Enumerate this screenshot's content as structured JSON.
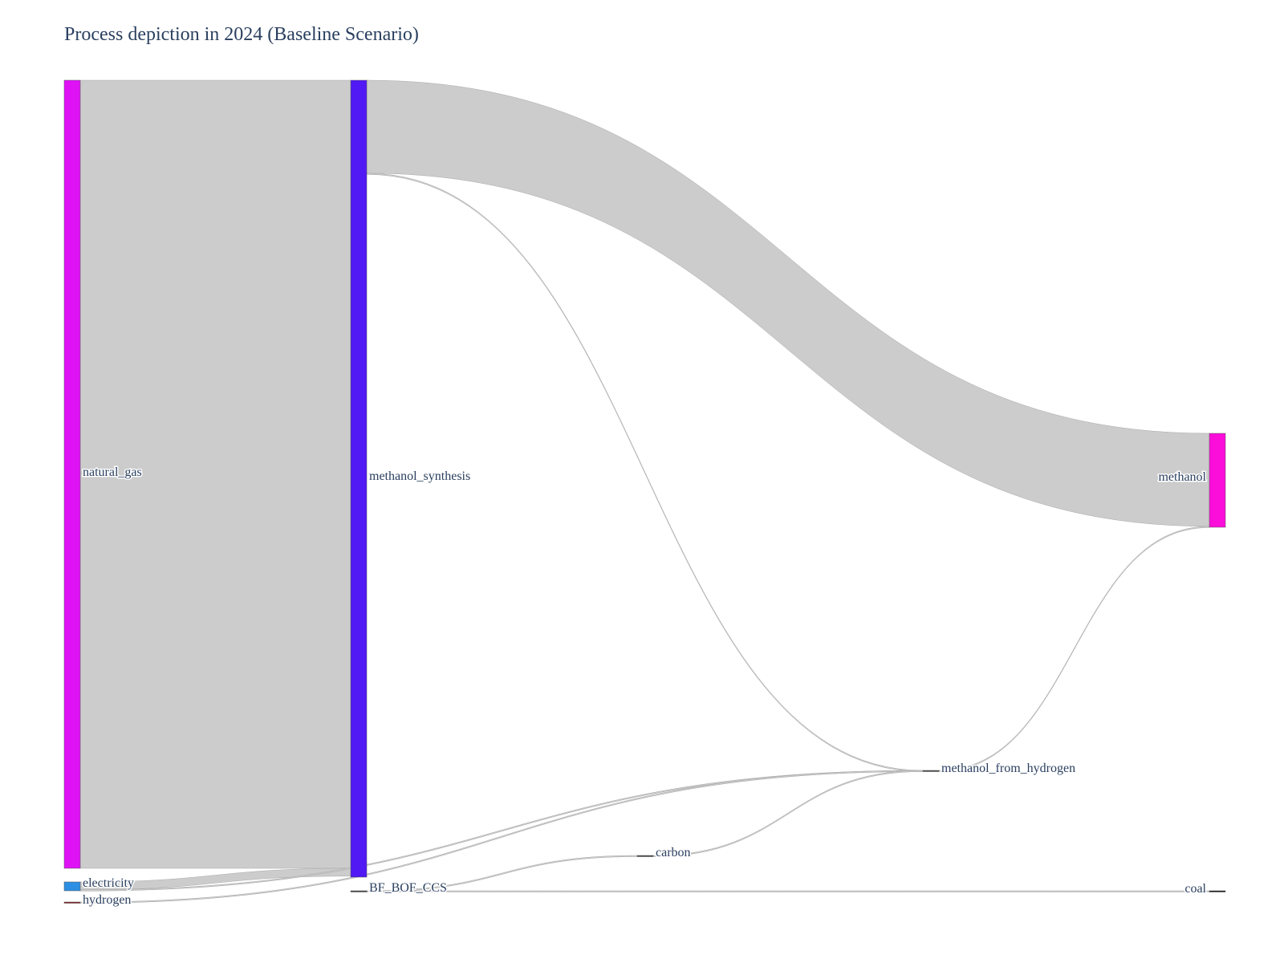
{
  "chart": {
    "title": "Process depiction in 2024 (Baseline Scenario)"
  },
  "colors": {
    "link": "#cccccc",
    "link_stroke": "#a8a8a8",
    "label": "#2a3f5f"
  },
  "chart_data": {
    "type": "sankey",
    "title": "Process depiction in 2024 (Baseline Scenario)",
    "nodes": [
      {
        "id": "natural_gas",
        "label": "natural_gas",
        "color": "#df12f6",
        "column": 0
      },
      {
        "id": "electricity",
        "label": "electricity",
        "color": "#2d8fe3",
        "column": 0
      },
      {
        "id": "hydrogen",
        "label": "hydrogen",
        "color": "#8b1a1a",
        "column": 0
      },
      {
        "id": "methanol_synthesis",
        "label": "methanol_synthesis",
        "color": "#5119f4",
        "column": 1
      },
      {
        "id": "BF_BOF_CCS",
        "label": "BF_BOF_CCS",
        "color": "#444444",
        "column": 1
      },
      {
        "id": "carbon",
        "label": "carbon",
        "color": "#444444",
        "column": 2
      },
      {
        "id": "methanol_from_hydrogen",
        "label": "methanol_from_hydrogen",
        "color": "#444444",
        "column": 3
      },
      {
        "id": "methanol",
        "label": "methanol",
        "color": "#fb0ed9",
        "column": 4
      },
      {
        "id": "coal",
        "label": "coal",
        "color": "#111111",
        "column": 4
      }
    ],
    "links": [
      {
        "source": "natural_gas",
        "target": "methanol_synthesis",
        "value": 1000
      },
      {
        "source": "electricity",
        "target": "methanol_synthesis",
        "value": 10
      },
      {
        "source": "electricity",
        "target": "methanol_from_hydrogen",
        "value": 0.3
      },
      {
        "source": "hydrogen",
        "target": "methanol_from_hydrogen",
        "value": 0.3
      },
      {
        "source": "methanol_synthesis",
        "target": "methanol",
        "value": 118
      },
      {
        "source": "methanol_synthesis",
        "target": "methanol_from_hydrogen",
        "value": 0.3
      },
      {
        "source": "BF_BOF_CCS",
        "target": "carbon",
        "value": 0.3
      },
      {
        "source": "BF_BOF_CCS",
        "target": "coal",
        "value": 0.3
      },
      {
        "source": "carbon",
        "target": "methanol_from_hydrogen",
        "value": 0.3
      },
      {
        "source": "methanol_from_hydrogen",
        "target": "methanol",
        "value": 0.3
      }
    ]
  }
}
